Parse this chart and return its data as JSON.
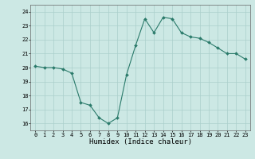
{
  "x": [
    0,
    1,
    2,
    3,
    4,
    5,
    6,
    7,
    8,
    9,
    10,
    11,
    12,
    13,
    14,
    15,
    16,
    17,
    18,
    19,
    20,
    21,
    22,
    23
  ],
  "y": [
    20.1,
    20.0,
    20.0,
    19.9,
    19.6,
    17.5,
    17.3,
    16.4,
    16.0,
    16.4,
    19.5,
    21.6,
    23.5,
    22.5,
    23.6,
    23.5,
    22.5,
    22.2,
    22.1,
    21.8,
    21.4,
    21.0,
    21.0,
    20.6
  ],
  "line_color": "#2a7a6a",
  "marker_color": "#2a7a6a",
  "bg_color": "#cce8e4",
  "grid_color": "#aacfcb",
  "xlabel": "Humidex (Indice chaleur)",
  "xlim": [
    -0.5,
    23.5
  ],
  "ylim": [
    15.5,
    24.5
  ],
  "yticks": [
    16,
    17,
    18,
    19,
    20,
    21,
    22,
    23,
    24
  ],
  "xticks": [
    0,
    1,
    2,
    3,
    4,
    5,
    6,
    7,
    8,
    9,
    10,
    11,
    12,
    13,
    14,
    15,
    16,
    17,
    18,
    19,
    20,
    21,
    22,
    23
  ],
  "tick_fontsize": 5.0,
  "xlabel_fontsize": 6.5
}
